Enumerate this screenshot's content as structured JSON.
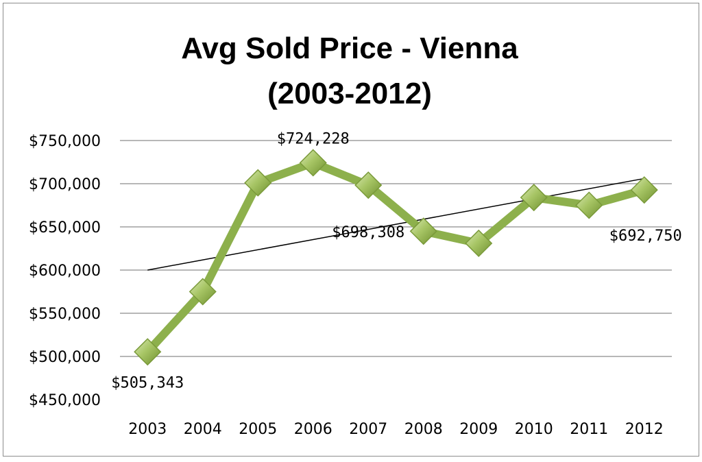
{
  "chart_data": {
    "type": "line",
    "title_line1": "Avg Sold Price - Vienna",
    "title_line2": "(2003-2012)",
    "xlabel": "",
    "ylabel": "",
    "categories": [
      "2003",
      "2004",
      "2005",
      "2006",
      "2007",
      "2008",
      "2009",
      "2010",
      "2011",
      "2012"
    ],
    "series": [
      {
        "values": [
          505343,
          575000,
          701000,
          724228,
          698308,
          645000,
          631000,
          684000,
          675000,
          692750
        ]
      }
    ],
    "trendline": {
      "type": "linear",
      "start": 600000,
      "end": 706000
    },
    "data_labels": [
      {
        "index": 0,
        "text": "$505,343"
      },
      {
        "index": 3,
        "text": "$724,228"
      },
      {
        "index": 4,
        "text": "$698,308"
      },
      {
        "index": 9,
        "text": "$692,750"
      }
    ],
    "y_ticks": [
      "$450,000",
      "$500,000",
      "$550,000",
      "$600,000",
      "$650,000",
      "$700,000",
      "$750,000"
    ],
    "ylim": [
      450000,
      750000
    ],
    "grid": true,
    "legend": "none",
    "line_color": "#8DB04C",
    "marker_color": "#9BBB59",
    "marker_shape": "diamond",
    "trendline_color": "#000000"
  }
}
